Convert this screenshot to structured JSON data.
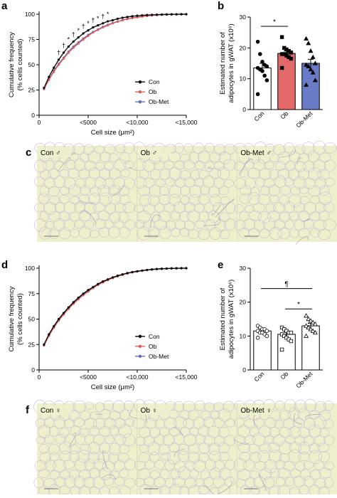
{
  "panels": {
    "a": "a",
    "b": "b",
    "c": "c",
    "d": "d",
    "e": "e",
    "f": "f"
  },
  "colors": {
    "con": "#000000",
    "ob": "#e05a5a",
    "obmet": "#5b6dbb",
    "histo_bg": "#eef0cc",
    "histo_line": "#cfc3d6",
    "histo_dark": "#a47ab0"
  },
  "micrograph_labels": {
    "c": [
      "Con ♂",
      "Ob ♂",
      "Ob-Met ♂"
    ],
    "f": [
      "Con ♀",
      "Ob ♀",
      "Ob-Met ♀"
    ]
  },
  "chart_data": [
    {
      "panel": "a",
      "type": "line",
      "xlabel": "Cell size (μm²)",
      "ylabel": [
        "Cumulative frequency",
        "(% cells counted)"
      ],
      "xticks": [
        0,
        5000,
        10000,
        15000
      ],
      "xticklabels": [
        "0",
        "<5000",
        "<10,000",
        "<15,000"
      ],
      "yticks": [
        0,
        25,
        50,
        75,
        100
      ],
      "xlim": [
        0,
        15000
      ],
      "ylim": [
        0,
        100
      ],
      "x": [
        500,
        1000,
        1500,
        2000,
        2500,
        3000,
        3500,
        4000,
        4500,
        5000,
        5500,
        6000,
        6500,
        7000,
        7500,
        8000,
        8500,
        9000,
        9500,
        10000,
        10500,
        11000,
        11500,
        12000,
        12500,
        13000,
        13500,
        14000,
        14500,
        15000
      ],
      "series": [
        {
          "name": "Con",
          "values": [
            27,
            38,
            47,
            55,
            62,
            68,
            73,
            77,
            81,
            84,
            87,
            89,
            91,
            93,
            94,
            95.5,
            96.5,
            97.3,
            98,
            98.5,
            98.9,
            99.2,
            99.4,
            99.6,
            99.7,
            99.8,
            99.9,
            99.9,
            100,
            100
          ]
        },
        {
          "name": "Ob",
          "values": [
            26,
            35,
            43,
            50,
            56,
            62,
            67,
            71,
            75,
            78.5,
            82,
            84.5,
            87,
            89,
            91,
            92.6,
            94,
            95.2,
            96.2,
            97,
            97.7,
            98.3,
            98.8,
            99.2,
            99.5,
            99.7,
            99.8,
            99.9,
            100,
            100
          ]
        },
        {
          "name": "Ob-Met",
          "values": [
            26,
            35.5,
            44,
            51,
            57,
            63,
            68,
            72,
            76,
            79.5,
            82.5,
            85,
            87.5,
            89.5,
            91.3,
            92.8,
            94.2,
            95.4,
            96.4,
            97.2,
            97.9,
            98.4,
            98.9,
            99.2,
            99.5,
            99.7,
            99.8,
            99.9,
            100,
            100
          ]
        }
      ],
      "annotations": [
        {
          "x": 2000,
          "y": 57,
          "text": "†"
        },
        {
          "x": 2500,
          "y": 64,
          "text": "†"
        },
        {
          "x": 3000,
          "y": 70,
          "text": "*"
        },
        {
          "x": 3500,
          "y": 75,
          "text": "†"
        },
        {
          "x": 4000,
          "y": 79,
          "text": "*"
        },
        {
          "x": 4500,
          "y": 83,
          "text": "†"
        },
        {
          "x": 5000,
          "y": 86,
          "text": "*"
        },
        {
          "x": 5500,
          "y": 89,
          "text": "†"
        },
        {
          "x": 6000,
          "y": 91,
          "text": "*"
        },
        {
          "x": 6500,
          "y": 93,
          "text": "†"
        },
        {
          "x": 7000,
          "y": 95,
          "text": "*"
        }
      ],
      "legend": "right"
    },
    {
      "panel": "b",
      "type": "bar",
      "ylabel": [
        "Estimated number of",
        "adipocytes in gWAT (x10⁶)"
      ],
      "categories": [
        "Con",
        "Ob",
        "Ob-Met"
      ],
      "values": [
        13.5,
        18.2,
        15
      ],
      "errors": [
        1.5,
        0.8,
        1.3
      ],
      "bar_colors": [
        "#ffffff",
        "#e46a6a",
        "#6a7cc8"
      ],
      "markers": [
        "circle",
        "square",
        "triangle"
      ],
      "points": [
        [
          22,
          18,
          15.5,
          14.5,
          14,
          13.5,
          13,
          12.5,
          11,
          9.5,
          5
        ],
        [
          23.5,
          20,
          19.5,
          19,
          18.5,
          18,
          18,
          17.5,
          17,
          16.5,
          13.5
        ],
        [
          23,
          21.5,
          19,
          17,
          15,
          14.5,
          14,
          13,
          12,
          9.5,
          8
        ]
      ],
      "yticks": [
        0,
        10,
        20,
        30
      ],
      "ylim": [
        0,
        30
      ],
      "significance": [
        {
          "from": 0,
          "to": 1,
          "y": 27,
          "text": "*"
        }
      ]
    },
    {
      "panel": "d",
      "type": "line",
      "xlabel": "Cell size (μm²)",
      "ylabel": [
        "Cumulative frequency",
        "(% cells counted)"
      ],
      "xticks": [
        0,
        5000,
        10000,
        15000
      ],
      "xticklabels": [
        "0",
        "<5000",
        "<10,000",
        "<15,000"
      ],
      "yticks": [
        0,
        25,
        50,
        75,
        100
      ],
      "xlim": [
        0,
        15000
      ],
      "ylim": [
        0,
        100
      ],
      "x": [
        500,
        1000,
        1500,
        2000,
        2500,
        3000,
        3500,
        4000,
        4500,
        5000,
        5500,
        6000,
        6500,
        7000,
        7500,
        8000,
        8500,
        9000,
        9500,
        10000,
        10500,
        11000,
        11500,
        12000,
        12500,
        13000,
        13500,
        14000,
        14500,
        15000
      ],
      "series": [
        {
          "name": "Con",
          "values": [
            25,
            35,
            43,
            50,
            56,
            61.5,
            66.5,
            71,
            75,
            78.5,
            81.5,
            84.5,
            87,
            89,
            91,
            92.6,
            94,
            95.2,
            96.2,
            97,
            97.7,
            98.3,
            98.8,
            99.2,
            99.5,
            99.7,
            99.8,
            99.9,
            100,
            100
          ]
        },
        {
          "name": "Ob",
          "values": [
            24,
            33.5,
            41.5,
            48.5,
            54.5,
            60,
            65,
            69.5,
            73.5,
            77,
            80.5,
            83.5,
            86,
            88.3,
            90.3,
            92,
            93.5,
            94.8,
            95.9,
            96.8,
            97.5,
            98.2,
            98.7,
            99.1,
            99.4,
            99.6,
            99.8,
            99.9,
            100,
            100
          ]
        },
        {
          "name": "Ob-Met",
          "values": [
            24.5,
            34,
            42,
            49,
            55,
            60.5,
            65.5,
            70,
            74,
            77.5,
            81,
            84,
            86.5,
            88.6,
            90.6,
            92.3,
            93.7,
            95,
            96,
            96.9,
            97.6,
            98.2,
            98.7,
            99.1,
            99.4,
            99.6,
            99.8,
            99.9,
            100,
            100
          ]
        }
      ],
      "legend": "right"
    },
    {
      "panel": "e",
      "type": "bar",
      "ylabel": [
        "Estimated number of",
        "adipocytes in gWAT (x10⁶)"
      ],
      "categories": [
        "Con",
        "Ob",
        "Ob-Met"
      ],
      "values": [
        11.5,
        10.5,
        13
      ],
      "errors": [
        0.5,
        0.7,
        0.7
      ],
      "bar_colors": [
        "#ffffff",
        "#ffffff",
        "#ffffff"
      ],
      "markers": [
        "circle",
        "square",
        "triangle"
      ],
      "points": [
        [
          13,
          12.5,
          12,
          12,
          11.5,
          11.5,
          11,
          11,
          10.5,
          10,
          9.5
        ],
        [
          12.5,
          12,
          11.5,
          11,
          11,
          10.5,
          10,
          9.5,
          9,
          8.5,
          6
        ],
        [
          16,
          15,
          14.5,
          14,
          13.5,
          13,
          12.5,
          12,
          11.5,
          11,
          10
        ]
      ],
      "yticks": [
        0,
        10,
        20,
        30
      ],
      "ylim": [
        0,
        30
      ],
      "significance": [
        {
          "from": 0,
          "to": 2,
          "y": 24,
          "text": "¶"
        },
        {
          "from": 1,
          "to": 2,
          "y": 18,
          "text": "*"
        }
      ]
    }
  ]
}
